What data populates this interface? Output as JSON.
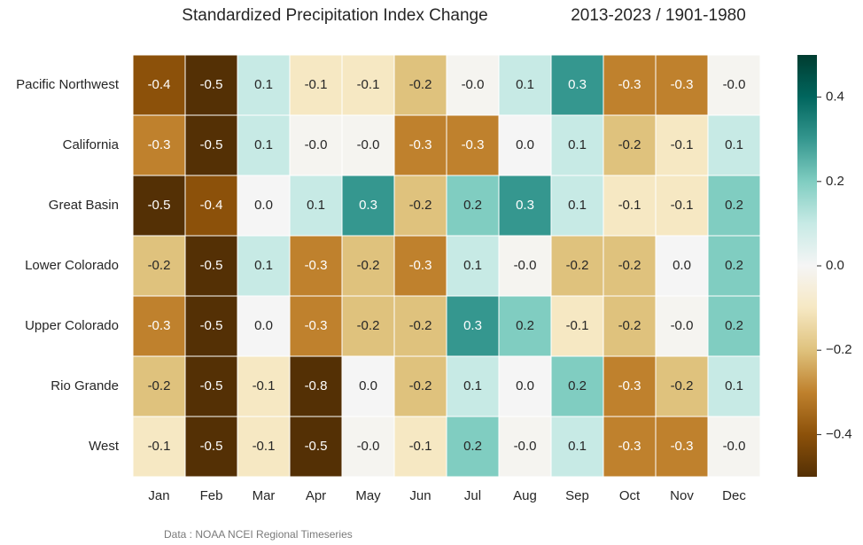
{
  "chart_data": {
    "type": "heatmap",
    "title": "Standardized Precipitation Index Change",
    "subtitle": "2013-2023  / 1901-1980",
    "source": "Data : NOAA NCEI Regional Timeseries",
    "categories": [
      "Jan",
      "Feb",
      "Mar",
      "Apr",
      "May",
      "Jun",
      "Jul",
      "Aug",
      "Sep",
      "Oct",
      "Nov",
      "Dec"
    ],
    "rows": [
      "Pacific Northwest",
      "California",
      "Great Basin",
      "Lower Colorado",
      "Upper Colorado",
      "Rio Grande",
      "West"
    ],
    "values": [
      [
        -0.4,
        -0.5,
        0.1,
        -0.1,
        -0.1,
        -0.2,
        -0.01,
        0.1,
        0.3,
        -0.3,
        -0.3,
        -0.01
      ],
      [
        -0.3,
        -0.5,
        0.1,
        -0.01,
        -0.01,
        -0.3,
        -0.3,
        0,
        0.1,
        -0.2,
        -0.1,
        0.1
      ],
      [
        -0.5,
        -0.4,
        0,
        0.1,
        0.3,
        -0.2,
        0.2,
        0.3,
        0.1,
        -0.1,
        -0.1,
        0.2
      ],
      [
        -0.2,
        -0.5,
        0.1,
        -0.3,
        -0.2,
        -0.3,
        0.1,
        -0.01,
        -0.2,
        -0.2,
        0,
        0.2
      ],
      [
        -0.3,
        -0.5,
        0,
        -0.3,
        -0.2,
        -0.2,
        0.3,
        0.2,
        -0.1,
        -0.2,
        -0.01,
        0.2
      ],
      [
        -0.2,
        -0.5,
        -0.1,
        -0.8,
        0,
        -0.2,
        0.1,
        0,
        0.2,
        -0.3,
        -0.2,
        0.1
      ],
      [
        -0.1,
        -0.5,
        -0.1,
        -0.5,
        -0.01,
        -0.1,
        0.2,
        -0.01,
        0.1,
        -0.3,
        -0.3,
        -0.01
      ]
    ],
    "value_labels": [
      [
        "-0.4",
        "-0.5",
        "0.1",
        "-0.1",
        "-0.1",
        "-0.2",
        "-0.0",
        "0.1",
        "0.3",
        "-0.3",
        "-0.3",
        "-0.0"
      ],
      [
        "-0.3",
        "-0.5",
        "0.1",
        "-0.0",
        "-0.0",
        "-0.3",
        "-0.3",
        "0.0",
        "0.1",
        "-0.2",
        "-0.1",
        "0.1"
      ],
      [
        "-0.5",
        "-0.4",
        "0.0",
        "0.1",
        "0.3",
        "-0.2",
        "0.2",
        "0.3",
        "0.1",
        "-0.1",
        "-0.1",
        "0.2"
      ],
      [
        "-0.2",
        "-0.5",
        "0.1",
        "-0.3",
        "-0.2",
        "-0.3",
        "0.1",
        "-0.0",
        "-0.2",
        "-0.2",
        "0.0",
        "0.2"
      ],
      [
        "-0.3",
        "-0.5",
        "0.0",
        "-0.3",
        "-0.2",
        "-0.2",
        "0.3",
        "0.2",
        "-0.1",
        "-0.2",
        "-0.0",
        "0.2"
      ],
      [
        "-0.2",
        "-0.5",
        "-0.1",
        "-0.8",
        "0.0",
        "-0.2",
        "0.1",
        "0.0",
        "0.2",
        "-0.3",
        "-0.2",
        "0.1"
      ],
      [
        "-0.1",
        "-0.5",
        "-0.1",
        "-0.5",
        "-0.0",
        "-0.1",
        "0.2",
        "-0.0",
        "0.1",
        "-0.3",
        "-0.3",
        "-0.0"
      ]
    ],
    "colormap": [
      "#543005",
      "#8c510a",
      "#bf812d",
      "#dfc27d",
      "#f6e8c3",
      "#f5f5f5",
      "#c7eae5",
      "#80cdc1",
      "#35978f",
      "#01665e",
      "#003c30"
    ],
    "clim": [
      -0.5,
      0.5
    ],
    "cticks": [
      {
        "value": -0.4,
        "label": "−0.4"
      },
      {
        "value": -0.2,
        "label": "−0.2"
      },
      {
        "value": 0,
        "label": "0.0"
      },
      0.2,
      0.4
    ]
  }
}
